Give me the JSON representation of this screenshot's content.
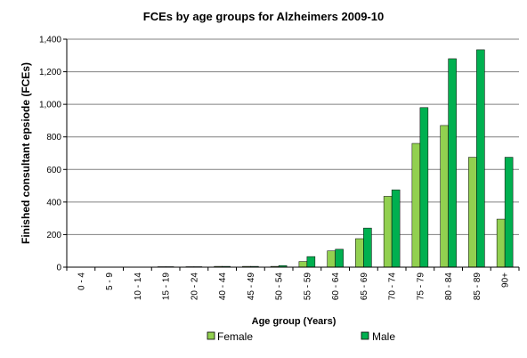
{
  "chart_data": {
    "type": "bar",
    "title": "FCEs by age groups for Alzheimers 2009-10",
    "xlabel": "Age group (Years)",
    "ylabel": "Finished consultant epsiode (FCEs)",
    "categories": [
      "0 - 4",
      "5 - 9",
      "10 - 14",
      "15 - 19",
      "20 - 24",
      "40 - 44",
      "45 - 49",
      "50 - 54",
      "55 - 59",
      "60 - 64",
      "65 - 69",
      "70 - 74",
      "75 - 79",
      "80 - 84",
      "85 - 89",
      "90+"
    ],
    "series": [
      {
        "name": "Female",
        "color": "#92d050",
        "values": [
          0,
          0,
          0,
          3,
          3,
          5,
          5,
          5,
          35,
          100,
          175,
          435,
          760,
          870,
          675,
          295
        ]
      },
      {
        "name": "Male",
        "color": "#00b050",
        "values": [
          0,
          0,
          0,
          3,
          3,
          5,
          5,
          10,
          65,
          110,
          240,
          475,
          980,
          1280,
          1335,
          675
        ]
      }
    ],
    "ylim": [
      0,
      1400
    ],
    "yticks": [
      "0",
      "200",
      "400",
      "600",
      "800",
      "1,000",
      "1,200",
      "1,400"
    ],
    "ytick_values": [
      0,
      200,
      400,
      600,
      800,
      1000,
      1200,
      1400
    ],
    "grid": true,
    "legend_position": "bottom"
  }
}
